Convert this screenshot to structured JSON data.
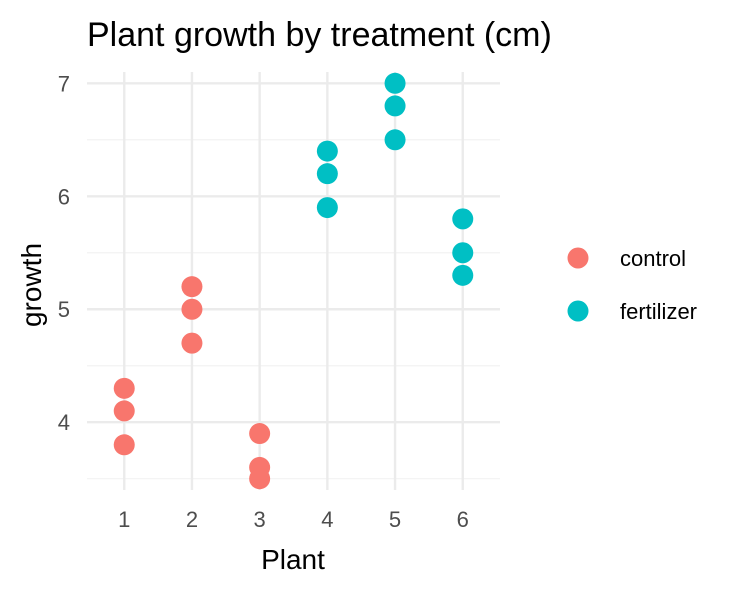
{
  "chart_data": {
    "type": "scatter",
    "title": "Plant growth by treatment (cm)",
    "xlabel": "Plant",
    "ylabel": "growth",
    "x_ticks": [
      "1",
      "2",
      "3",
      "4",
      "5",
      "6"
    ],
    "y_ticks": [
      "4",
      "5",
      "6",
      "7"
    ],
    "xlim": [
      0.45,
      6.55
    ],
    "ylim": [
      3.4,
      7.1
    ],
    "grid": true,
    "legend_position": "right",
    "series": [
      {
        "name": "control",
        "color": "#F8766D",
        "points": [
          {
            "x": 1,
            "y": 4.3
          },
          {
            "x": 1,
            "y": 4.1
          },
          {
            "x": 1,
            "y": 3.8
          },
          {
            "x": 2,
            "y": 5.2
          },
          {
            "x": 2,
            "y": 5.0
          },
          {
            "x": 2,
            "y": 4.7
          },
          {
            "x": 3,
            "y": 3.9
          },
          {
            "x": 3,
            "y": 3.6
          },
          {
            "x": 3,
            "y": 3.5
          }
        ]
      },
      {
        "name": "fertilizer",
        "color": "#00BFC4",
        "points": [
          {
            "x": 4,
            "y": 6.4
          },
          {
            "x": 4,
            "y": 6.2
          },
          {
            "x": 4,
            "y": 5.9
          },
          {
            "x": 5,
            "y": 7.0
          },
          {
            "x": 5,
            "y": 6.8
          },
          {
            "x": 5,
            "y": 6.5
          },
          {
            "x": 6,
            "y": 5.8
          },
          {
            "x": 6,
            "y": 5.5
          },
          {
            "x": 6,
            "y": 5.3
          }
        ]
      }
    ]
  }
}
